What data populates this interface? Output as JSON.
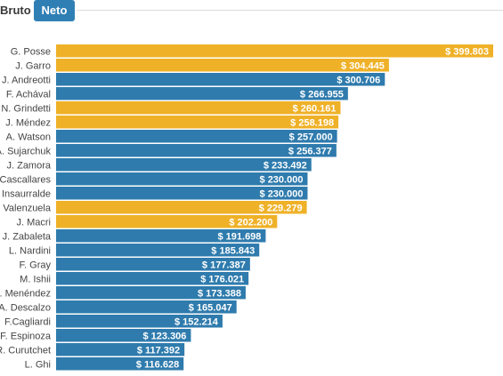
{
  "toggle": {
    "bruto_label": "Bruto",
    "neto_label": "Neto",
    "selected": "Neto"
  },
  "colors": {
    "yellow": "#efb128",
    "blue": "#2f7bad",
    "active_tab": "#2f7fb5"
  },
  "chart_data": {
    "type": "bar",
    "orientation": "horizontal",
    "categories": [
      "G. Posse",
      "J. Garro",
      "J. Andreotti",
      "F. Achával",
      "N. Grindetti",
      "J. Méndez",
      "A. Watson",
      "A. Sujarchuk",
      "J. Zamora",
      "Cascallares",
      "Insaurralde",
      "Valenzuela",
      "J. Macri",
      "J. Zabaleta",
      "L. Nardini",
      "F. Gray",
      "M. Ishii",
      "S. Menéndez",
      "A. Descalzo",
      "F.Cagliardi",
      "F. Espinoza",
      "R. Curutchet",
      "L. Ghi"
    ],
    "values": [
      399803,
      304445,
      300706,
      266955,
      260161,
      258198,
      257000,
      256377,
      233492,
      230000,
      230000,
      229279,
      202200,
      191698,
      185843,
      177387,
      176021,
      173388,
      165047,
      152214,
      123306,
      117392,
      116628
    ],
    "labels": [
      "$ 399.803",
      "$ 304.445",
      "$ 300.706",
      "$ 266.955",
      "$ 260.161",
      "$ 258.198",
      "$ 257.000",
      "$ 256.377",
      "$ 233.492",
      "$ 230.000",
      "$ 230.000",
      "$ 229.279",
      "$ 202.200",
      "$ 191.698",
      "$ 185.843",
      "$ 177.387",
      "$ 176.021",
      "$ 173.388",
      "$ 165.047",
      "$ 152.214",
      "$ 123.306",
      "$ 117.392",
      "$ 116.628"
    ],
    "bar_colors": [
      "yellow",
      "yellow",
      "blue",
      "blue",
      "yellow",
      "yellow",
      "blue",
      "blue",
      "blue",
      "blue",
      "blue",
      "yellow",
      "yellow",
      "blue",
      "blue",
      "blue",
      "blue",
      "blue",
      "blue",
      "blue",
      "blue",
      "blue",
      "blue"
    ],
    "xlim": [
      0,
      399803
    ]
  }
}
